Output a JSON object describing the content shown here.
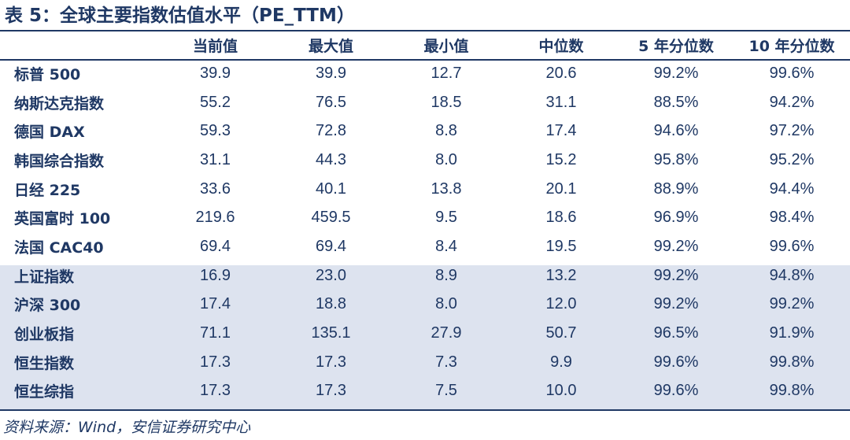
{
  "title": "表 5：全球主要指数估值水平（PE_TTM）",
  "headers": [
    "",
    "当前值",
    "最大值",
    "最小值",
    "中位数",
    "5 年分位数",
    "10 年分位数"
  ],
  "rows": [
    {
      "name": "标普 500",
      "values": [
        "39.9",
        "39.9",
        "12.7",
        "20.6",
        "99.2%",
        "99.6%"
      ]
    },
    {
      "name": "纳斯达克指数",
      "values": [
        "55.2",
        "76.5",
        "18.5",
        "31.1",
        "88.5%",
        "94.2%"
      ]
    },
    {
      "name": "德国 DAX",
      "values": [
        "59.3",
        "72.8",
        "8.8",
        "17.4",
        "94.6%",
        "97.2%"
      ]
    },
    {
      "name": "韩国综合指数",
      "values": [
        "31.1",
        "44.3",
        "8.0",
        "15.2",
        "95.8%",
        "95.2%"
      ]
    },
    {
      "name": "日经 225",
      "values": [
        "33.6",
        "40.1",
        "13.8",
        "20.1",
        "88.9%",
        "94.4%"
      ]
    },
    {
      "name": "英国富时 100",
      "values": [
        "219.6",
        "459.5",
        "9.5",
        "18.6",
        "96.9%",
        "98.4%"
      ]
    },
    {
      "name": "法国 CAC40",
      "values": [
        "69.4",
        "69.4",
        "8.4",
        "19.5",
        "99.2%",
        "99.6%"
      ]
    },
    {
      "name": "上证指数",
      "values": [
        "16.9",
        "23.0",
        "8.9",
        "13.2",
        "99.2%",
        "94.8%"
      ]
    },
    {
      "name": "沪深 300",
      "values": [
        "17.4",
        "18.8",
        "8.0",
        "12.0",
        "99.2%",
        "99.2%"
      ]
    },
    {
      "name": "创业板指",
      "values": [
        "71.1",
        "135.1",
        "27.9",
        "50.7",
        "96.5%",
        "91.9%"
      ]
    },
    {
      "name": "恒生指数",
      "values": [
        "17.3",
        "17.3",
        "7.3",
        "9.9",
        "99.6%",
        "99.8%"
      ]
    },
    {
      "name": "恒生综指",
      "values": [
        "17.3",
        "17.3",
        "7.5",
        "10.0",
        "99.6%",
        "99.8%"
      ]
    }
  ],
  "source": "资料来源：Wind，安信证券研究中心",
  "colors": {
    "text": "#1f3864",
    "shade": "#dde3ef",
    "rule": "#1f3864"
  }
}
